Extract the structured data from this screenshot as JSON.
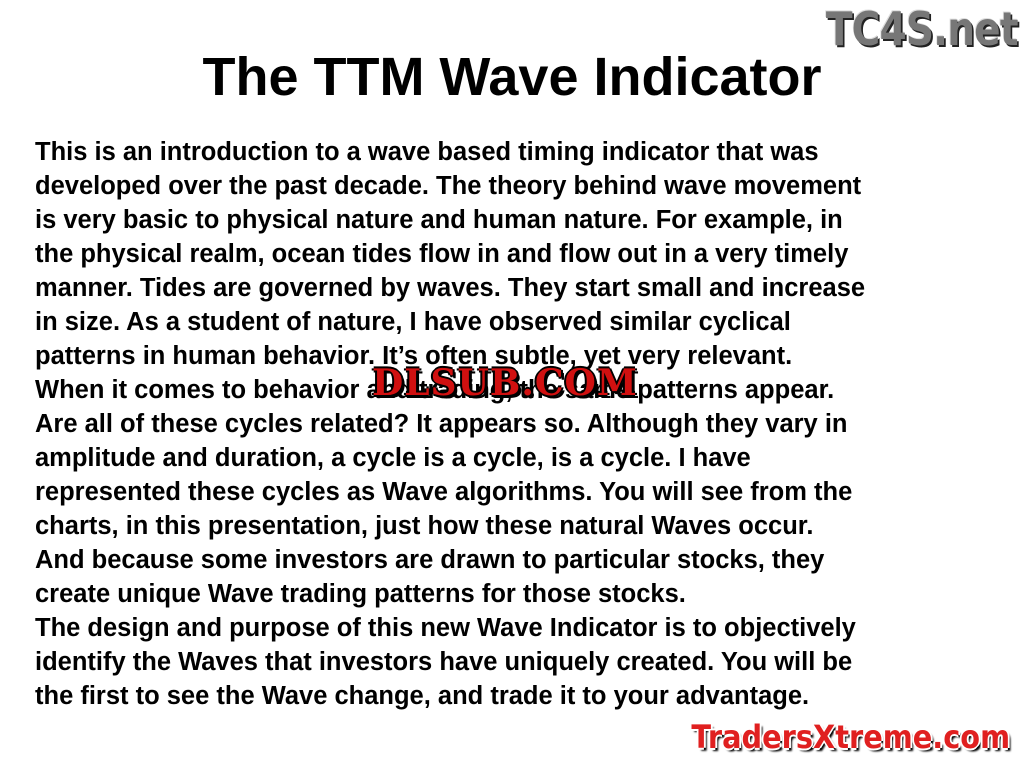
{
  "title": "The TTM Wave Indicator",
  "body_lines": [
    "This is an introduction to a wave based timing indicator that was",
    "developed over the past decade. The theory behind wave movement",
    "is very basic to physical nature and human nature. For example, in",
    "the physical realm, ocean tides flow in and flow out in a very timely",
    "manner. Tides are governed by waves. They start small and increase",
    "in size. As a student of nature, I have observed similar cyclical",
    "patterns in human behavior. It’s often subtle, yet very relevant.",
    "When it comes to behavior and trading, the same patterns appear.",
    "Are all of these cycles related? It appears so. Although they vary in",
    "amplitude and duration, a cycle is a cycle, is a cycle. I have",
    "represented these cycles as Wave algorithms. You will see from the",
    "charts, in this presentation, just how these natural Waves occur.",
    "And because some investors are drawn to particular stocks, they",
    "create unique Wave trading patterns for those stocks.",
    "The design and purpose of this new Wave Indicator is to objectively",
    "identify the Waves that investors have uniquely created. You will be",
    "the first to see the Wave change, and trade it to your advantage."
  ],
  "watermarks": {
    "top_right": "TC4S.net",
    "center": "DLSUB.COM",
    "bottom_right": "TradersXtreme.com"
  }
}
